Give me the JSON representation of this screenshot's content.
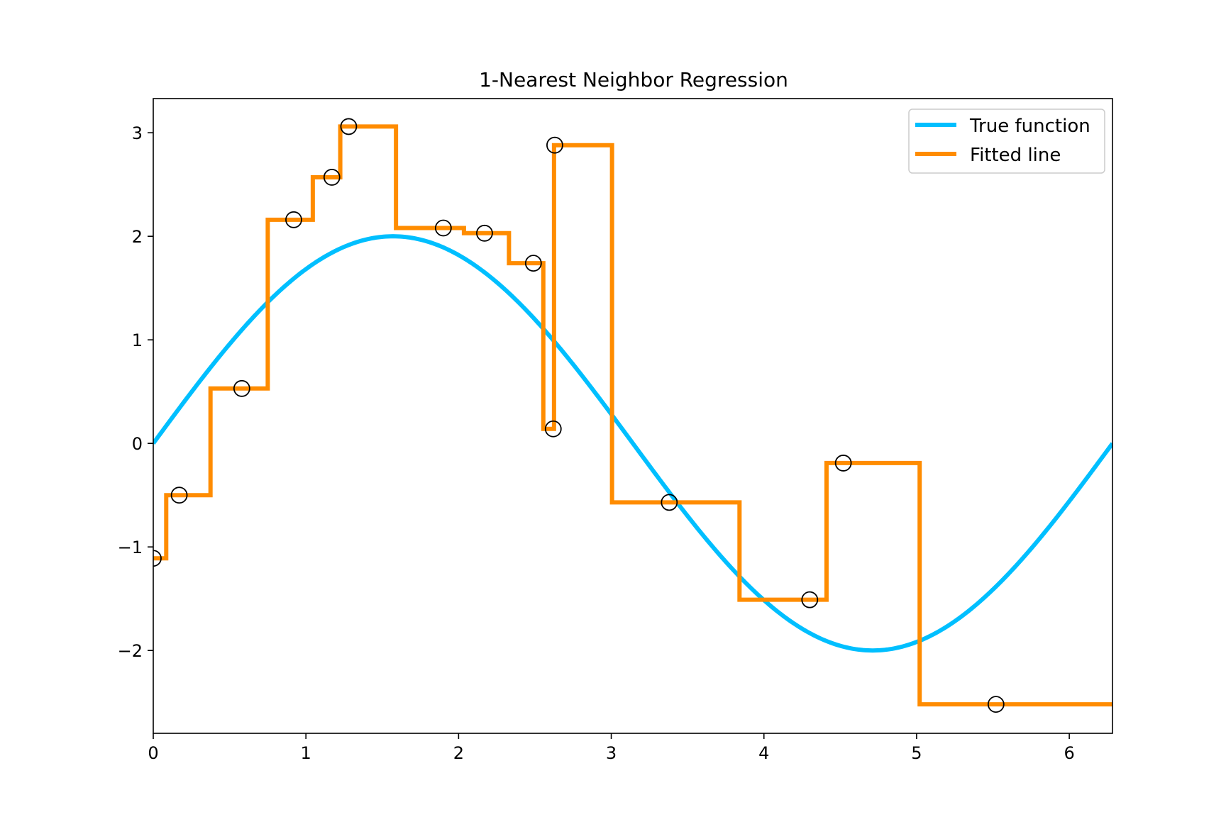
{
  "chart_data": {
    "type": "line",
    "title": "1-Nearest Neighbor Regression",
    "xlabel": "",
    "ylabel": "",
    "xlim": [
      0,
      6.283
    ],
    "ylim": [
      -2.8,
      3.33
    ],
    "xticks": [
      0,
      1,
      2,
      3,
      4,
      5,
      6
    ],
    "yticks": [
      3,
      2,
      1,
      0,
      -1,
      -2
    ],
    "xtick_labels": [
      "0",
      "1",
      "2",
      "3",
      "4",
      "5",
      "6"
    ],
    "ytick_labels": [
      "3",
      "2",
      "1",
      "0",
      "−1",
      "−2"
    ],
    "grid": false,
    "legend_position": "top-right",
    "colors": {
      "true_function": "#00BFFF",
      "fitted_line": "#FF8C00",
      "points": "#000000"
    },
    "series": [
      {
        "name": "True function",
        "function": "2*sin(x)",
        "x_range": [
          0,
          6.283
        ]
      },
      {
        "name": "Fitted line",
        "style": "step"
      }
    ],
    "points": {
      "x": [
        0.0,
        0.17,
        0.58,
        0.92,
        1.17,
        1.28,
        1.9,
        2.17,
        2.49,
        2.62,
        2.63,
        3.38,
        4.3,
        4.52,
        5.52
      ],
      "y": [
        -1.11,
        -0.5,
        0.53,
        2.16,
        2.57,
        3.06,
        2.08,
        2.03,
        1.74,
        0.14,
        2.88,
        -0.57,
        -1.51,
        -0.19,
        -2.52
      ]
    },
    "step_fit": {
      "breaks": [
        0.0,
        0.085,
        0.375,
        0.75,
        1.045,
        1.225,
        1.59,
        2.035,
        2.33,
        2.555,
        2.625,
        3.005,
        3.84,
        4.41,
        5.02,
        6.283
      ],
      "values": [
        -1.11,
        -0.5,
        0.53,
        2.16,
        2.57,
        3.06,
        2.08,
        2.03,
        1.74,
        0.14,
        2.88,
        -0.57,
        -1.51,
        -0.19,
        -2.52
      ]
    }
  }
}
